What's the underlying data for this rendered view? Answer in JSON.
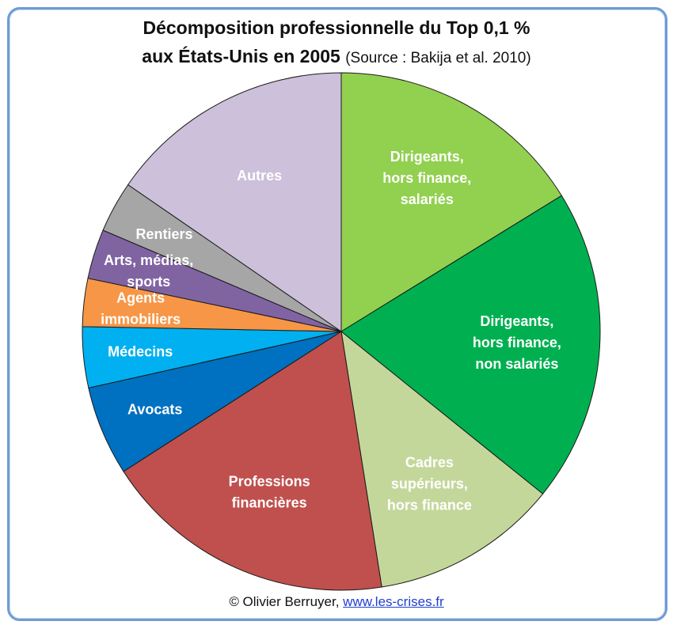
{
  "title_line1": "Décomposition professionnelle du Top 0,1 %",
  "title_line2": "aux États-Unis en 2005",
  "source": "(Source :  Bakija et al. 2010)",
  "footer": {
    "copyright": "© Olivier Berruyer,",
    "link": "www.les-crises.fr"
  },
  "chart_data": {
    "type": "pie",
    "slices": [
      {
        "label_lines": [
          "Dirigeants,",
          "hors finance,",
          "salariés"
        ],
        "value": 16.2,
        "color": "#92d050"
      },
      {
        "label_lines": [
          "Dirigeants,",
          "hors finance,",
          "non salariés"
        ],
        "value": 19.6,
        "color": "#00b050"
      },
      {
        "label_lines": [
          "Cadres",
          "supérieurs,",
          "hors finance"
        ],
        "value": 11.7,
        "color": "#c4d79b"
      },
      {
        "label_lines": [
          "Professions",
          "financières"
        ],
        "value": 18.4,
        "color": "#c0504d"
      },
      {
        "label_lines": [
          "Avocats"
        ],
        "value": 5.6,
        "color": "#0070c0"
      },
      {
        "label_lines": [
          "Médecins"
        ],
        "value": 3.8,
        "color": "#00b0f0"
      },
      {
        "label_lines": [
          "Agents",
          "immobiliers"
        ],
        "value": 3.0,
        "color": "#f79646"
      },
      {
        "label_lines": [
          "Arts, médias,",
          "sports"
        ],
        "value": 3.1,
        "color": "#8064a2"
      },
      {
        "label_lines": [
          "Rentiers"
        ],
        "value": 3.2,
        "color": "#a6a6a6"
      },
      {
        "label_lines": [
          "Autres"
        ],
        "value": 15.4,
        "color": "#ccc0da"
      }
    ]
  }
}
